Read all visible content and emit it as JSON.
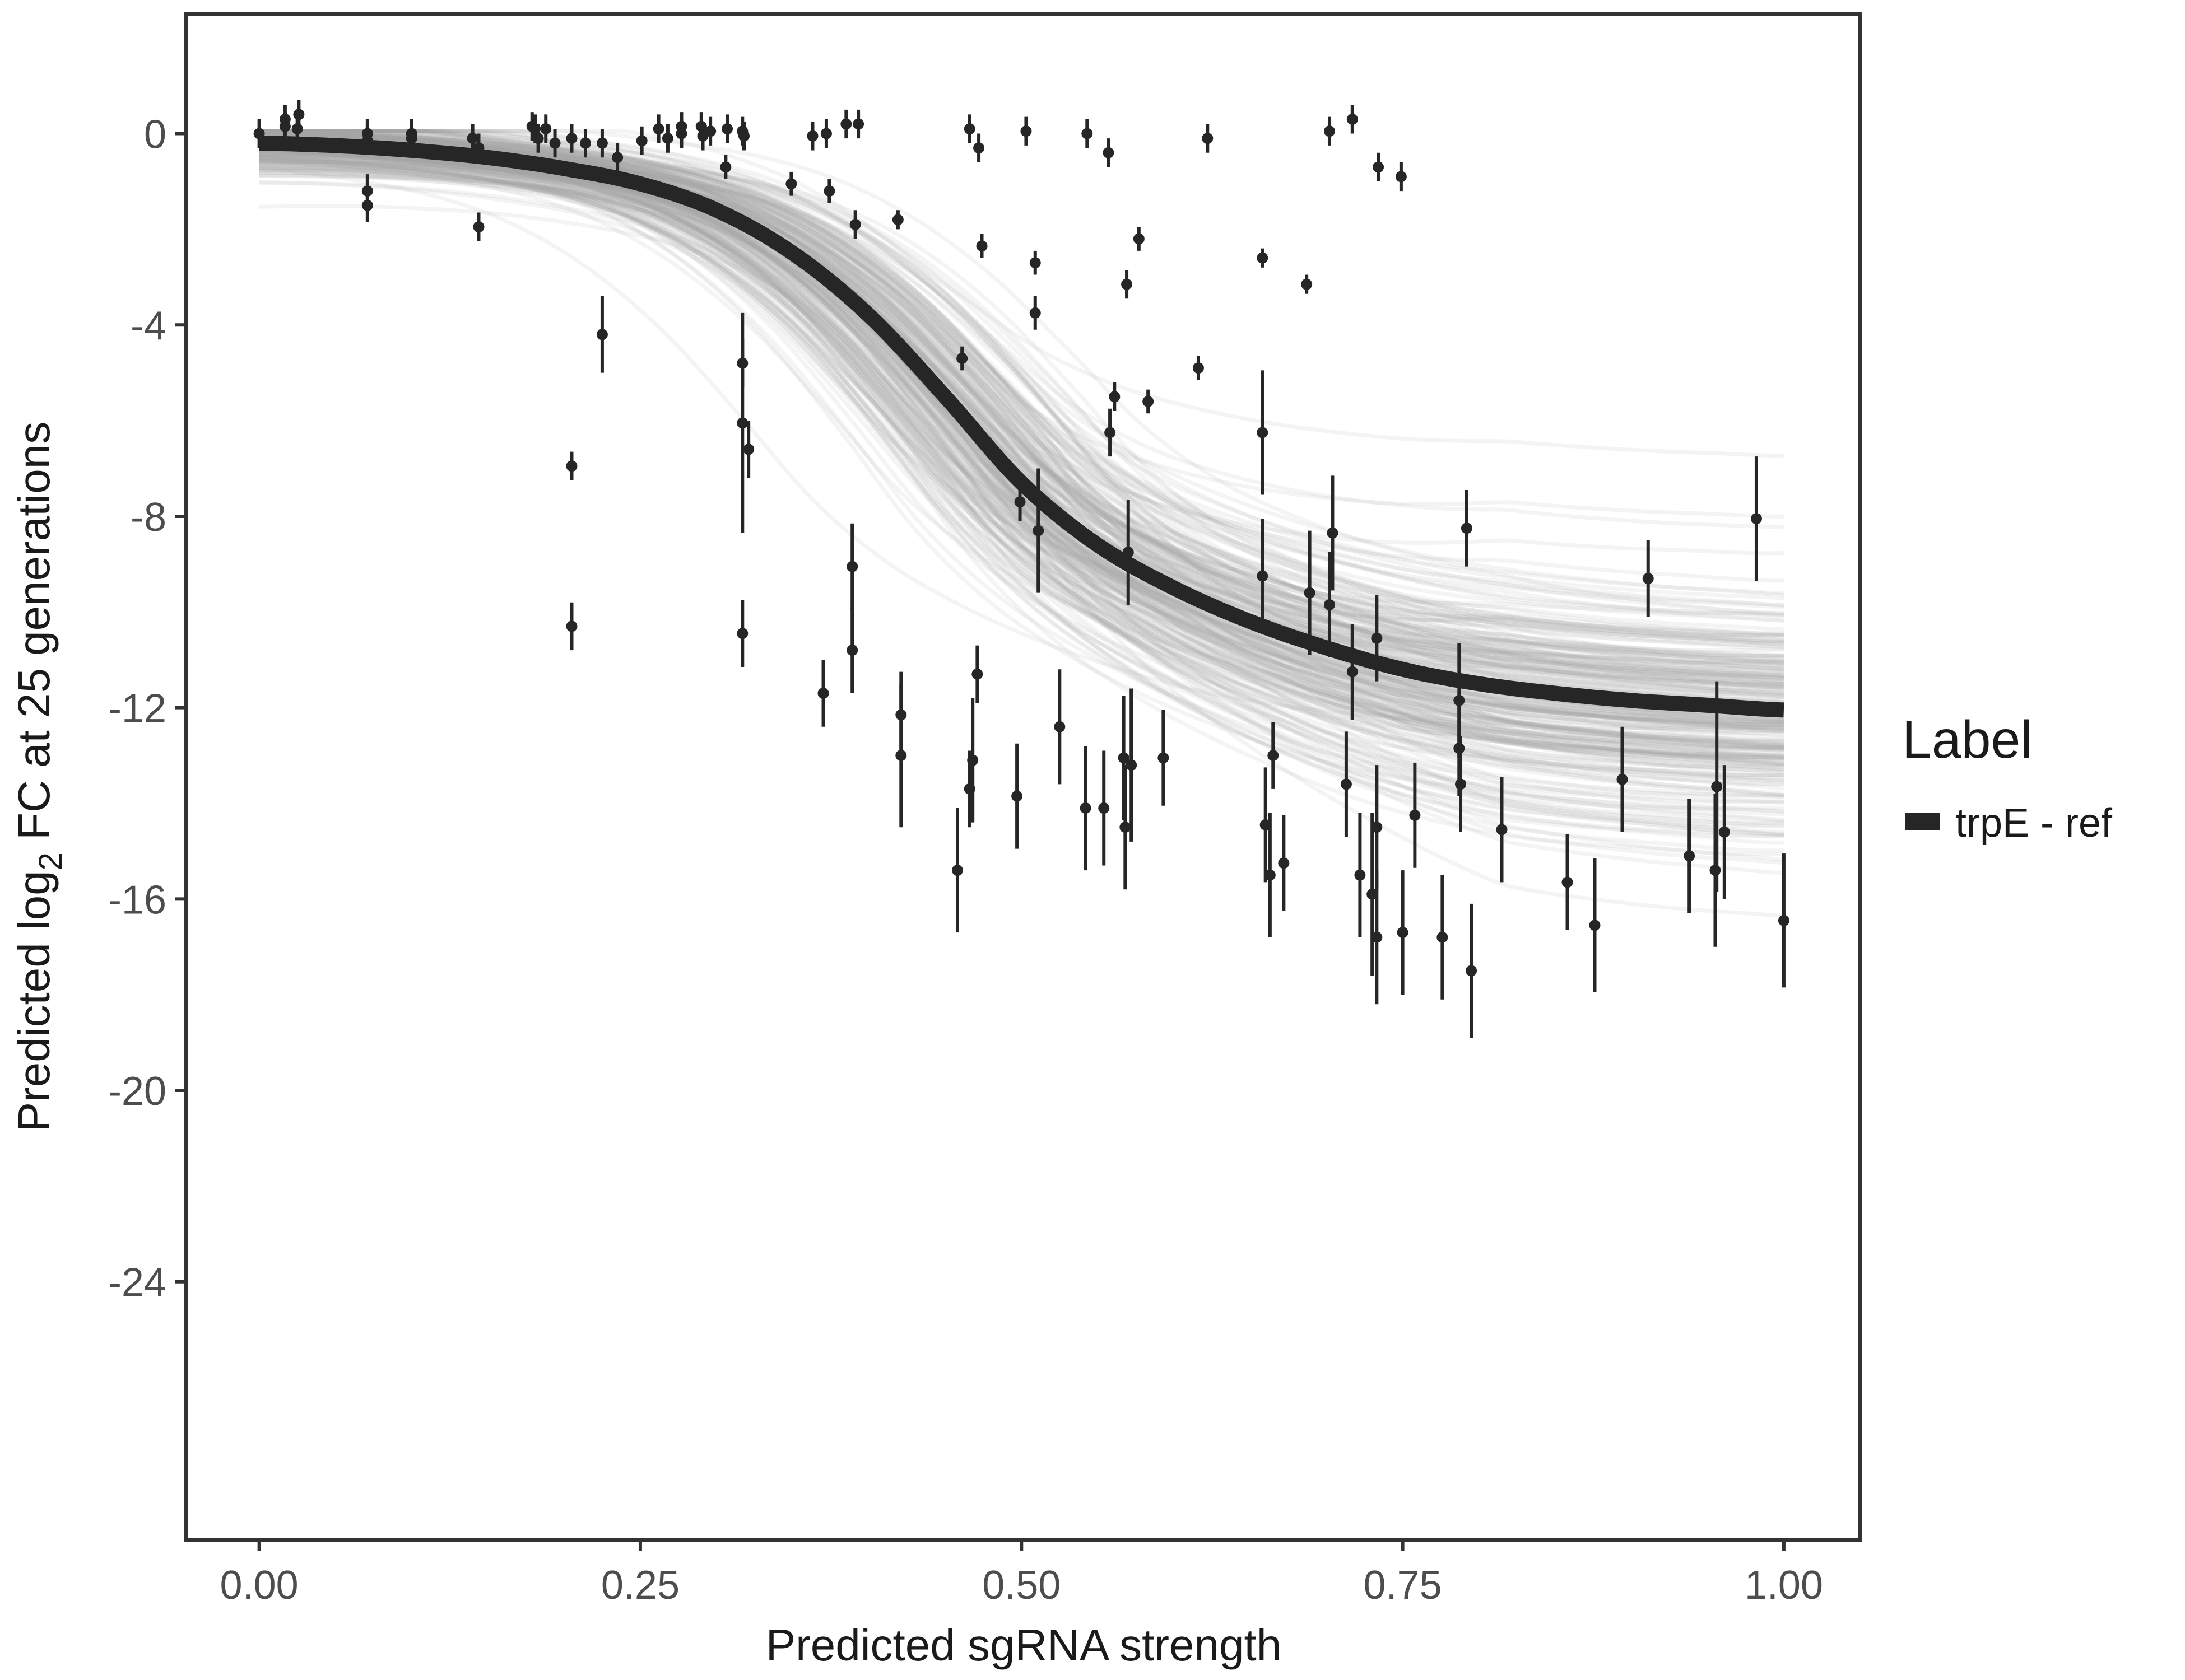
{
  "chart_data": {
    "type": "scatter",
    "xlabel": "Predicted sgRNA strength",
    "ylabel": {
      "prefix": "Predicted  log",
      "subscript": "2",
      "suffix": " FC at 25 generations"
    },
    "xlim": [
      -0.048,
      1.05
    ],
    "ylim": [
      -29.4,
      2.5
    ],
    "xticks": [
      0,
      0.25,
      0.5,
      0.75,
      1
    ],
    "xtick_labels": [
      "0.00",
      "0.25",
      "0.50",
      "0.75",
      "1.00"
    ],
    "yticks": [
      0,
      -4,
      -8,
      -12,
      -16,
      -20,
      -24
    ],
    "ytick_labels": [
      "0",
      "-4",
      "-8",
      "-12",
      "-16",
      "-20",
      "-24"
    ],
    "grid": false,
    "legend": {
      "title": "Label",
      "position": "right",
      "entries": [
        {
          "label": "trpE - ref",
          "color": "#262626"
        }
      ]
    },
    "colors": {
      "fit": "#262626",
      "draws": "#a6a6a6",
      "points": "#262626",
      "frame": "#333333"
    },
    "fit_curve": {
      "name": "trpE - ref",
      "x": [
        0,
        0.05,
        0.1,
        0.15,
        0.2,
        0.25,
        0.3,
        0.35,
        0.4,
        0.45,
        0.5,
        0.55,
        0.6,
        0.65,
        0.7,
        0.75,
        0.8,
        0.85,
        0.9,
        0.95,
        1.0
      ],
      "y": [
        -0.2,
        -0.25,
        -0.35,
        -0.5,
        -0.73,
        -1.05,
        -1.6,
        -2.5,
        -3.8,
        -5.5,
        -7.3,
        -8.6,
        -9.5,
        -10.2,
        -10.75,
        -11.2,
        -11.5,
        -11.7,
        -11.85,
        -11.95,
        -12.05
      ]
    },
    "posterior_draws": "grey band of posterior fit curves around the mean fit",
    "points": [
      [
        0.0,
        0.0,
        0.3
      ],
      [
        0.017,
        0.3,
        0.3
      ],
      [
        0.017,
        0.15,
        0.3
      ],
      [
        0.026,
        0.4,
        0.3
      ],
      [
        0.025,
        0.1,
        0.3
      ],
      [
        0.071,
        0.0,
        0.3
      ],
      [
        0.071,
        -0.15,
        0.3
      ],
      [
        0.1,
        0.0,
        0.3
      ],
      [
        0.1,
        -0.1,
        0.3
      ],
      [
        0.14,
        -0.1,
        0.3
      ],
      [
        0.144,
        -0.3,
        0.3
      ],
      [
        0.179,
        0.15,
        0.3
      ],
      [
        0.181,
        0.1,
        0.3
      ],
      [
        0.183,
        -0.1,
        0.3
      ],
      [
        0.188,
        0.1,
        0.3
      ],
      [
        0.194,
        -0.2,
        0.3
      ],
      [
        0.205,
        -0.1,
        0.3
      ],
      [
        0.214,
        -0.2,
        0.3
      ],
      [
        0.225,
        -0.2,
        0.3
      ],
      [
        0.235,
        -0.5,
        0.3
      ],
      [
        0.251,
        -0.15,
        0.3
      ],
      [
        0.262,
        0.1,
        0.3
      ],
      [
        0.268,
        -0.1,
        0.3
      ],
      [
        0.277,
        0.15,
        0.3
      ],
      [
        0.277,
        0.0,
        0.3
      ],
      [
        0.29,
        0.15,
        0.3
      ],
      [
        0.291,
        -0.05,
        0.3
      ],
      [
        0.296,
        0.05,
        0.3
      ],
      [
        0.307,
        0.1,
        0.3
      ],
      [
        0.317,
        0.05,
        0.3
      ],
      [
        0.318,
        -0.05,
        0.3
      ],
      [
        0.363,
        -0.05,
        0.3
      ],
      [
        0.372,
        0.0,
        0.3
      ],
      [
        0.385,
        0.2,
        0.3
      ],
      [
        0.393,
        0.2,
        0.3
      ],
      [
        0.466,
        0.1,
        0.3
      ],
      [
        0.472,
        -0.3,
        0.3
      ],
      [
        0.503,
        0.05,
        0.3
      ],
      [
        0.543,
        0.0,
        0.3
      ],
      [
        0.557,
        -0.4,
        0.3
      ],
      [
        0.622,
        -0.1,
        0.3
      ],
      [
        0.702,
        0.05,
        0.3
      ],
      [
        0.717,
        0.3,
        0.3
      ],
      [
        0.734,
        -0.7,
        0.3
      ],
      [
        0.749,
        -0.9,
        0.3
      ],
      [
        0.071,
        -1.2,
        0.35
      ],
      [
        0.071,
        -1.5,
        0.35
      ],
      [
        0.144,
        -1.95,
        0.3
      ],
      [
        0.205,
        -6.95,
        0.3
      ],
      [
        0.225,
        -4.2,
        0.8
      ],
      [
        0.205,
        -10.3,
        0.5
      ],
      [
        0.306,
        -0.7,
        0.25
      ],
      [
        0.317,
        -4.8,
        0.5
      ],
      [
        0.317,
        -6.05,
        2.3
      ],
      [
        0.321,
        -6.6,
        0.6
      ],
      [
        0.317,
        -10.45,
        0.7
      ],
      [
        0.349,
        -1.05,
        0.25
      ],
      [
        0.374,
        -1.2,
        0.25
      ],
      [
        0.391,
        -1.9,
        0.3
      ],
      [
        0.419,
        -1.8,
        0.2
      ],
      [
        0.474,
        -2.35,
        0.25
      ],
      [
        0.509,
        -2.7,
        0.25
      ],
      [
        0.509,
        -3.75,
        0.35
      ],
      [
        0.569,
        -3.15,
        0.3
      ],
      [
        0.577,
        -2.2,
        0.25
      ],
      [
        0.461,
        -4.7,
        0.25
      ],
      [
        0.558,
        -6.25,
        0.5
      ],
      [
        0.561,
        -5.5,
        0.3
      ],
      [
        0.583,
        -5.6,
        0.25
      ],
      [
        0.616,
        -4.9,
        0.25
      ],
      [
        0.658,
        -2.6,
        0.2
      ],
      [
        0.687,
        -3.15,
        0.2
      ],
      [
        0.658,
        -6.25,
        1.3
      ],
      [
        0.499,
        -7.7,
        0.4
      ],
      [
        0.511,
        -8.3,
        1.3
      ],
      [
        0.57,
        -8.75,
        1.1
      ],
      [
        0.389,
        -9.05,
        0.9
      ],
      [
        0.389,
        -10.8,
        0.9
      ],
      [
        0.37,
        -11.7,
        0.7
      ],
      [
        0.421,
        -12.15,
        0.9
      ],
      [
        0.421,
        -13.0,
        1.5
      ],
      [
        0.471,
        -11.3,
        0.6
      ],
      [
        0.458,
        -15.4,
        1.3
      ],
      [
        0.466,
        -13.7,
        0.8
      ],
      [
        0.468,
        -13.1,
        1.3
      ],
      [
        0.497,
        -13.85,
        1.1
      ],
      [
        0.525,
        -12.4,
        1.2
      ],
      [
        0.542,
        -14.1,
        1.3
      ],
      [
        0.554,
        -14.1,
        1.2
      ],
      [
        0.567,
        -13.05,
        1.3
      ],
      [
        0.568,
        -14.5,
        1.3
      ],
      [
        0.572,
        -13.2,
        1.6
      ],
      [
        0.593,
        -13.05,
        1.0
      ],
      [
        0.658,
        -9.25,
        1.2
      ],
      [
        0.689,
        -9.6,
        1.3
      ],
      [
        0.702,
        -9.85,
        1.1
      ],
      [
        0.704,
        -8.35,
        1.2
      ],
      [
        0.717,
        -11.25,
        1.0
      ],
      [
        0.733,
        -10.55,
        0.9
      ],
      [
        0.792,
        -8.25,
        0.8
      ],
      [
        0.787,
        -11.85,
        1.2
      ],
      [
        0.787,
        -12.85,
        1.0
      ],
      [
        0.788,
        -13.6,
        1.0
      ],
      [
        0.66,
        -14.45,
        1.2
      ],
      [
        0.663,
        -15.5,
        1.3
      ],
      [
        0.665,
        -13.0,
        0.7
      ],
      [
        0.672,
        -15.25,
        1.0
      ],
      [
        0.713,
        -13.6,
        1.1
      ],
      [
        0.722,
        -15.5,
        1.3
      ],
      [
        0.73,
        -15.9,
        1.7
      ],
      [
        0.733,
        -14.5,
        1.3
      ],
      [
        0.733,
        -16.8,
        1.4
      ],
      [
        0.75,
        -16.7,
        1.3
      ],
      [
        0.758,
        -14.25,
        1.1
      ],
      [
        0.776,
        -16.8,
        1.3
      ],
      [
        0.795,
        -17.5,
        1.4
      ],
      [
        0.815,
        -14.55,
        1.1
      ],
      [
        0.858,
        -15.65,
        1.0
      ],
      [
        0.876,
        -16.55,
        1.4
      ],
      [
        0.894,
        -13.5,
        1.1
      ],
      [
        0.911,
        -9.3,
        0.8
      ],
      [
        0.938,
        -15.1,
        1.2
      ],
      [
        0.955,
        -15.4,
        1.6
      ],
      [
        0.956,
        -13.65,
        2.2
      ],
      [
        0.961,
        -14.6,
        1.4
      ],
      [
        0.982,
        -8.05,
        1.3
      ],
      [
        1.0,
        -16.45,
        1.4
      ]
    ]
  }
}
